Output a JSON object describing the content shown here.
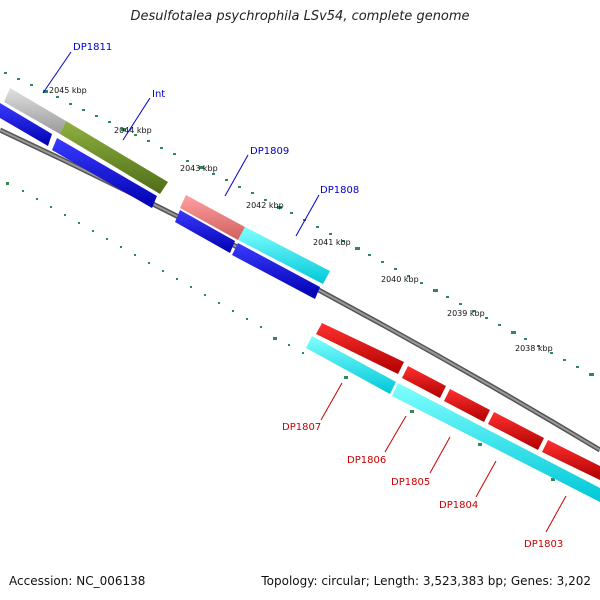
{
  "title": "Desulfotalea psychrophila LSv54, complete genome",
  "footer": {
    "accession": "Accession: NC_006138",
    "summary": "Topology: circular; Length: 3,523,383 bp; Genes: 3,202"
  },
  "ticks": [
    "2045 kbp",
    "2044 kbp",
    "2043 kbp",
    "2042 kbp",
    "2041 kbp",
    "2040 kbp",
    "2039 kbp",
    "2038 kbp"
  ],
  "genes": [
    {
      "name": "DP1811",
      "strand": "forward",
      "color": "#cccccc"
    },
    {
      "name": "Int",
      "strand": "forward",
      "color": "#6b8e23"
    },
    {
      "name": "DP1809",
      "strand": "forward",
      "color": "#f08080"
    },
    {
      "name": "DP1808",
      "strand": "forward",
      "color": "#00ffff"
    },
    {
      "name": "DP1807",
      "strand": "reverse",
      "color": "#00ffff"
    },
    {
      "name": "DP1806",
      "strand": "reverse",
      "color": "#ff0000"
    },
    {
      "name": "DP1805",
      "strand": "reverse",
      "color": "#ff0000"
    },
    {
      "name": "DP1804",
      "strand": "reverse",
      "color": "#ff0000"
    },
    {
      "name": "DP1803",
      "strand": "reverse",
      "color": "#ff0000"
    }
  ],
  "colors": {
    "backbone": "#808080",
    "tick_dots": "#2e8b57",
    "blue_track": "#0000ee",
    "label_forward": "#0000cc",
    "label_reverse": "#cc0000"
  }
}
